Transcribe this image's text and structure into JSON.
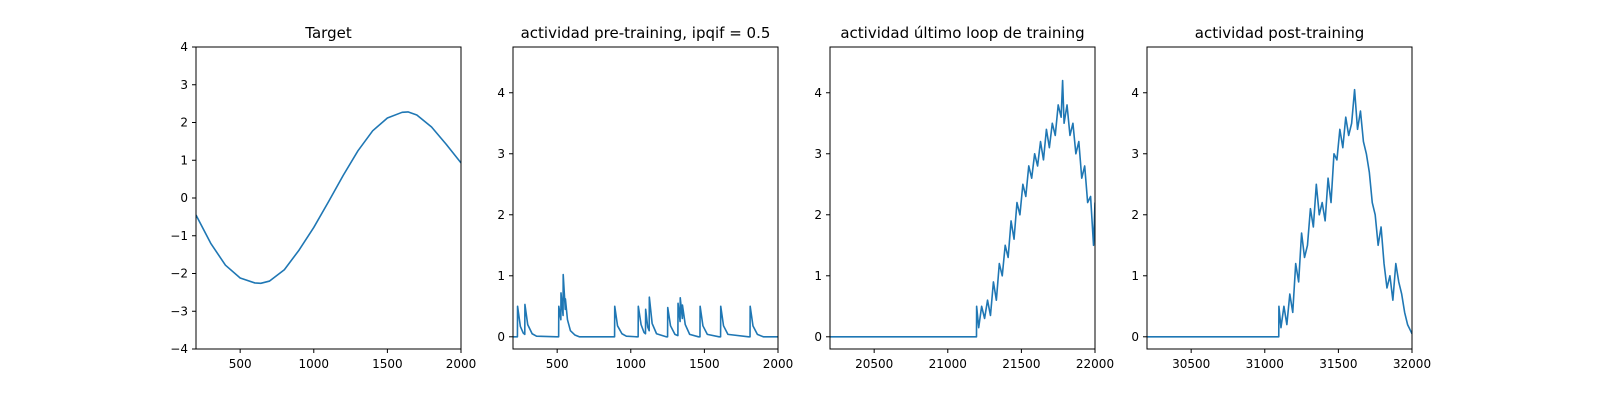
{
  "chart_data": [
    {
      "type": "line",
      "title": "Target",
      "xlabel": "",
      "ylabel": "",
      "xlim": [
        200,
        2000
      ],
      "ylim": [
        -4,
        4
      ],
      "xticks": [
        500,
        1000,
        1500,
        2000
      ],
      "yticks": [
        -4,
        -3,
        -2,
        -1,
        0,
        1,
        2,
        3,
        4
      ],
      "xtick_labels": [
        "500",
        "1000",
        "1500",
        "2000"
      ],
      "ytick_labels": [
        "−4",
        "−3",
        "−2",
        "−1",
        "0",
        "1",
        "2",
        "3",
        "4"
      ],
      "series": [
        {
          "color": "#1f77b4",
          "x": [
            200,
            300,
            400,
            500,
            600,
            640,
            700,
            800,
            900,
            1000,
            1100,
            1200,
            1300,
            1400,
            1500,
            1600,
            1640,
            1700,
            1800,
            1900,
            2000
          ],
          "y": [
            -0.45,
            -1.2,
            -1.78,
            -2.12,
            -2.25,
            -2.26,
            -2.2,
            -1.9,
            -1.38,
            -0.78,
            -0.1,
            0.6,
            1.25,
            1.78,
            2.12,
            2.27,
            2.28,
            2.2,
            1.88,
            1.42,
            0.93
          ]
        }
      ]
    },
    {
      "type": "line",
      "title": "actividad pre-training, ipqif = 0.5",
      "xlabel": "",
      "ylabel": "",
      "xlim": [
        200,
        2000
      ],
      "ylim": [
        -0.2,
        4.75
      ],
      "xticks": [
        500,
        1000,
        1500,
        2000
      ],
      "yticks": [
        0,
        1,
        2,
        3,
        4
      ],
      "xtick_labels": [
        "500",
        "1000",
        "1500",
        "2000"
      ],
      "ytick_labels": [
        "0",
        "1",
        "2",
        "3",
        "4"
      ],
      "series": [
        {
          "color": "#1f77b4",
          "x": [
            200,
            230,
            231,
            250,
            270,
            280,
            281,
            300,
            330,
            360,
            500,
            510,
            511,
            525,
            526,
            540,
            541,
            555,
            556,
            570,
            590,
            620,
            650,
            880,
            890,
            891,
            910,
            940,
            970,
            1040,
            1050,
            1051,
            1070,
            1090,
            1100,
            1101,
            1115,
            1125,
            1126,
            1145,
            1175,
            1240,
            1250,
            1251,
            1270,
            1300,
            1320,
            1321,
            1335,
            1336,
            1350,
            1351,
            1370,
            1400,
            1460,
            1470,
            1471,
            1490,
            1520,
            1600,
            1610,
            1611,
            1630,
            1660,
            1800,
            1810,
            1811,
            1830,
            1860,
            1900,
            2000
          ],
          "y": [
            0,
            0,
            0.5,
            0.17,
            0.06,
            0.04,
            0.53,
            0.2,
            0.05,
            0.01,
            0,
            0,
            0.5,
            0.28,
            0.72,
            0.35,
            1.02,
            0.45,
            0.62,
            0.28,
            0.1,
            0.03,
            0,
            0,
            0,
            0.5,
            0.18,
            0.05,
            0.01,
            0,
            0,
            0.5,
            0.2,
            0.07,
            0.05,
            0.45,
            0.16,
            0.1,
            0.65,
            0.22,
            0.05,
            0,
            0,
            0.48,
            0.18,
            0.04,
            0.02,
            0.55,
            0.25,
            0.64,
            0.3,
            0.52,
            0.2,
            0.04,
            0,
            0,
            0.5,
            0.18,
            0.04,
            0,
            0,
            0.5,
            0.18,
            0.04,
            0,
            0,
            0.5,
            0.18,
            0.04,
            0,
            0
          ]
        }
      ]
    },
    {
      "type": "line",
      "title": "actividad último loop de training",
      "xlabel": "",
      "ylabel": "",
      "xlim": [
        20200,
        22000
      ],
      "ylim": [
        -0.2,
        4.75
      ],
      "xticks": [
        20500,
        21000,
        21500,
        22000
      ],
      "yticks": [
        0,
        1,
        2,
        3,
        4
      ],
      "xtick_labels": [
        "20500",
        "21000",
        "21500",
        "22000"
      ],
      "ytick_labels": [
        "0",
        "1",
        "2",
        "3",
        "4"
      ],
      "series": [
        {
          "color": "#1f77b4",
          "x": [
            20200,
            21190,
            21195,
            21196,
            21210,
            21230,
            21250,
            21270,
            21290,
            21310,
            21330,
            21350,
            21370,
            21390,
            21410,
            21430,
            21450,
            21470,
            21490,
            21510,
            21530,
            21550,
            21570,
            21590,
            21610,
            21630,
            21650,
            21670,
            21690,
            21710,
            21730,
            21750,
            21770,
            21780,
            21790,
            21810,
            21830,
            21850,
            21870,
            21890,
            21910,
            21930,
            21950,
            21970,
            21990,
            22000
          ],
          "y": [
            0,
            0,
            0,
            0.5,
            0.15,
            0.5,
            0.3,
            0.6,
            0.35,
            0.9,
            0.6,
            1.2,
            1.0,
            1.5,
            1.3,
            1.9,
            1.6,
            2.2,
            2.0,
            2.5,
            2.3,
            2.8,
            2.6,
            3.0,
            2.8,
            3.2,
            2.9,
            3.4,
            3.1,
            3.5,
            3.3,
            3.8,
            3.6,
            4.2,
            3.5,
            3.8,
            3.3,
            3.5,
            3.0,
            3.2,
            2.6,
            2.8,
            2.2,
            2.3,
            1.5,
            2.2
          ]
        }
      ]
    },
    {
      "type": "line",
      "title": "actividad post-training",
      "xlabel": "",
      "ylabel": "",
      "xlim": [
        30200,
        32000
      ],
      "ylim": [
        -0.2,
        4.75
      ],
      "xticks": [
        30500,
        31000,
        31500,
        32000
      ],
      "yticks": [
        0,
        1,
        2,
        3,
        4
      ],
      "xtick_labels": [
        "30500",
        "31000",
        "31500",
        "32000"
      ],
      "ytick_labels": [
        "0",
        "1",
        "2",
        "3",
        "4"
      ],
      "series": [
        {
          "color": "#1f77b4",
          "x": [
            30200,
            31090,
            31095,
            31096,
            31110,
            31130,
            31150,
            31170,
            31190,
            31210,
            31230,
            31250,
            31270,
            31290,
            31310,
            31330,
            31350,
            31370,
            31390,
            31410,
            31430,
            31450,
            31470,
            31490,
            31510,
            31530,
            31550,
            31570,
            31590,
            31610,
            31630,
            31650,
            31670,
            31690,
            31710,
            31730,
            31750,
            31770,
            31790,
            31810,
            31830,
            31850,
            31870,
            31890,
            31910,
            31930,
            31950,
            31970,
            31990,
            32000
          ],
          "y": [
            0,
            0,
            0,
            0.5,
            0.15,
            0.5,
            0.2,
            0.7,
            0.4,
            1.2,
            0.9,
            1.7,
            1.3,
            1.5,
            2.1,
            1.8,
            2.5,
            2.0,
            2.2,
            1.9,
            2.6,
            2.2,
            3.0,
            2.9,
            3.4,
            3.1,
            3.6,
            3.3,
            3.5,
            4.05,
            3.4,
            3.7,
            3.2,
            3.0,
            2.7,
            2.2,
            2.0,
            1.5,
            1.8,
            1.2,
            0.8,
            1.0,
            0.6,
            1.2,
            0.9,
            0.7,
            0.4,
            0.2,
            0.1,
            0.05
          ]
        }
      ]
    }
  ]
}
